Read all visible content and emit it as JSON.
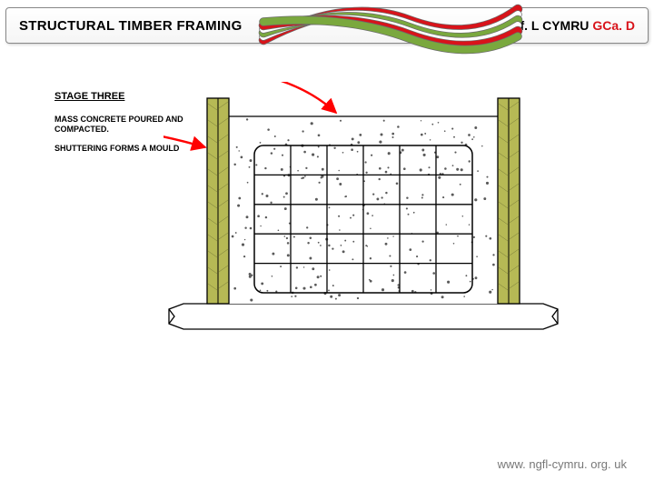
{
  "header": {
    "title_left": "STRUCTURAL TIMBER FRAMING",
    "title_right_1": "NGf. L CYMRU ",
    "title_right_2": "GCa. D"
  },
  "ribbons": {
    "colors": [
      "#d8131a",
      "#7aa83e",
      "#ffffff"
    ],
    "stroke": "#6b6b6b"
  },
  "labels": {
    "stage": "STAGE THREE",
    "text1": "MASS CONCRETE POURED AND COMPACTED.",
    "text2": "SHUTTERING FORMS A MOULD"
  },
  "diagram": {
    "shutter_fill": "#b6b955",
    "shutter_stroke": "#000000",
    "grid_stroke": "#000000",
    "concrete_fill": "#ffffff",
    "dot_color": "#5a5a5a",
    "arrow_color": "#ff0000",
    "base_fill": "#ffffff",
    "base_stroke": "#000000",
    "grid_cols": 6,
    "grid_rows": 5
  },
  "footer": {
    "url": "www. ngfl-cymru. org. uk"
  }
}
